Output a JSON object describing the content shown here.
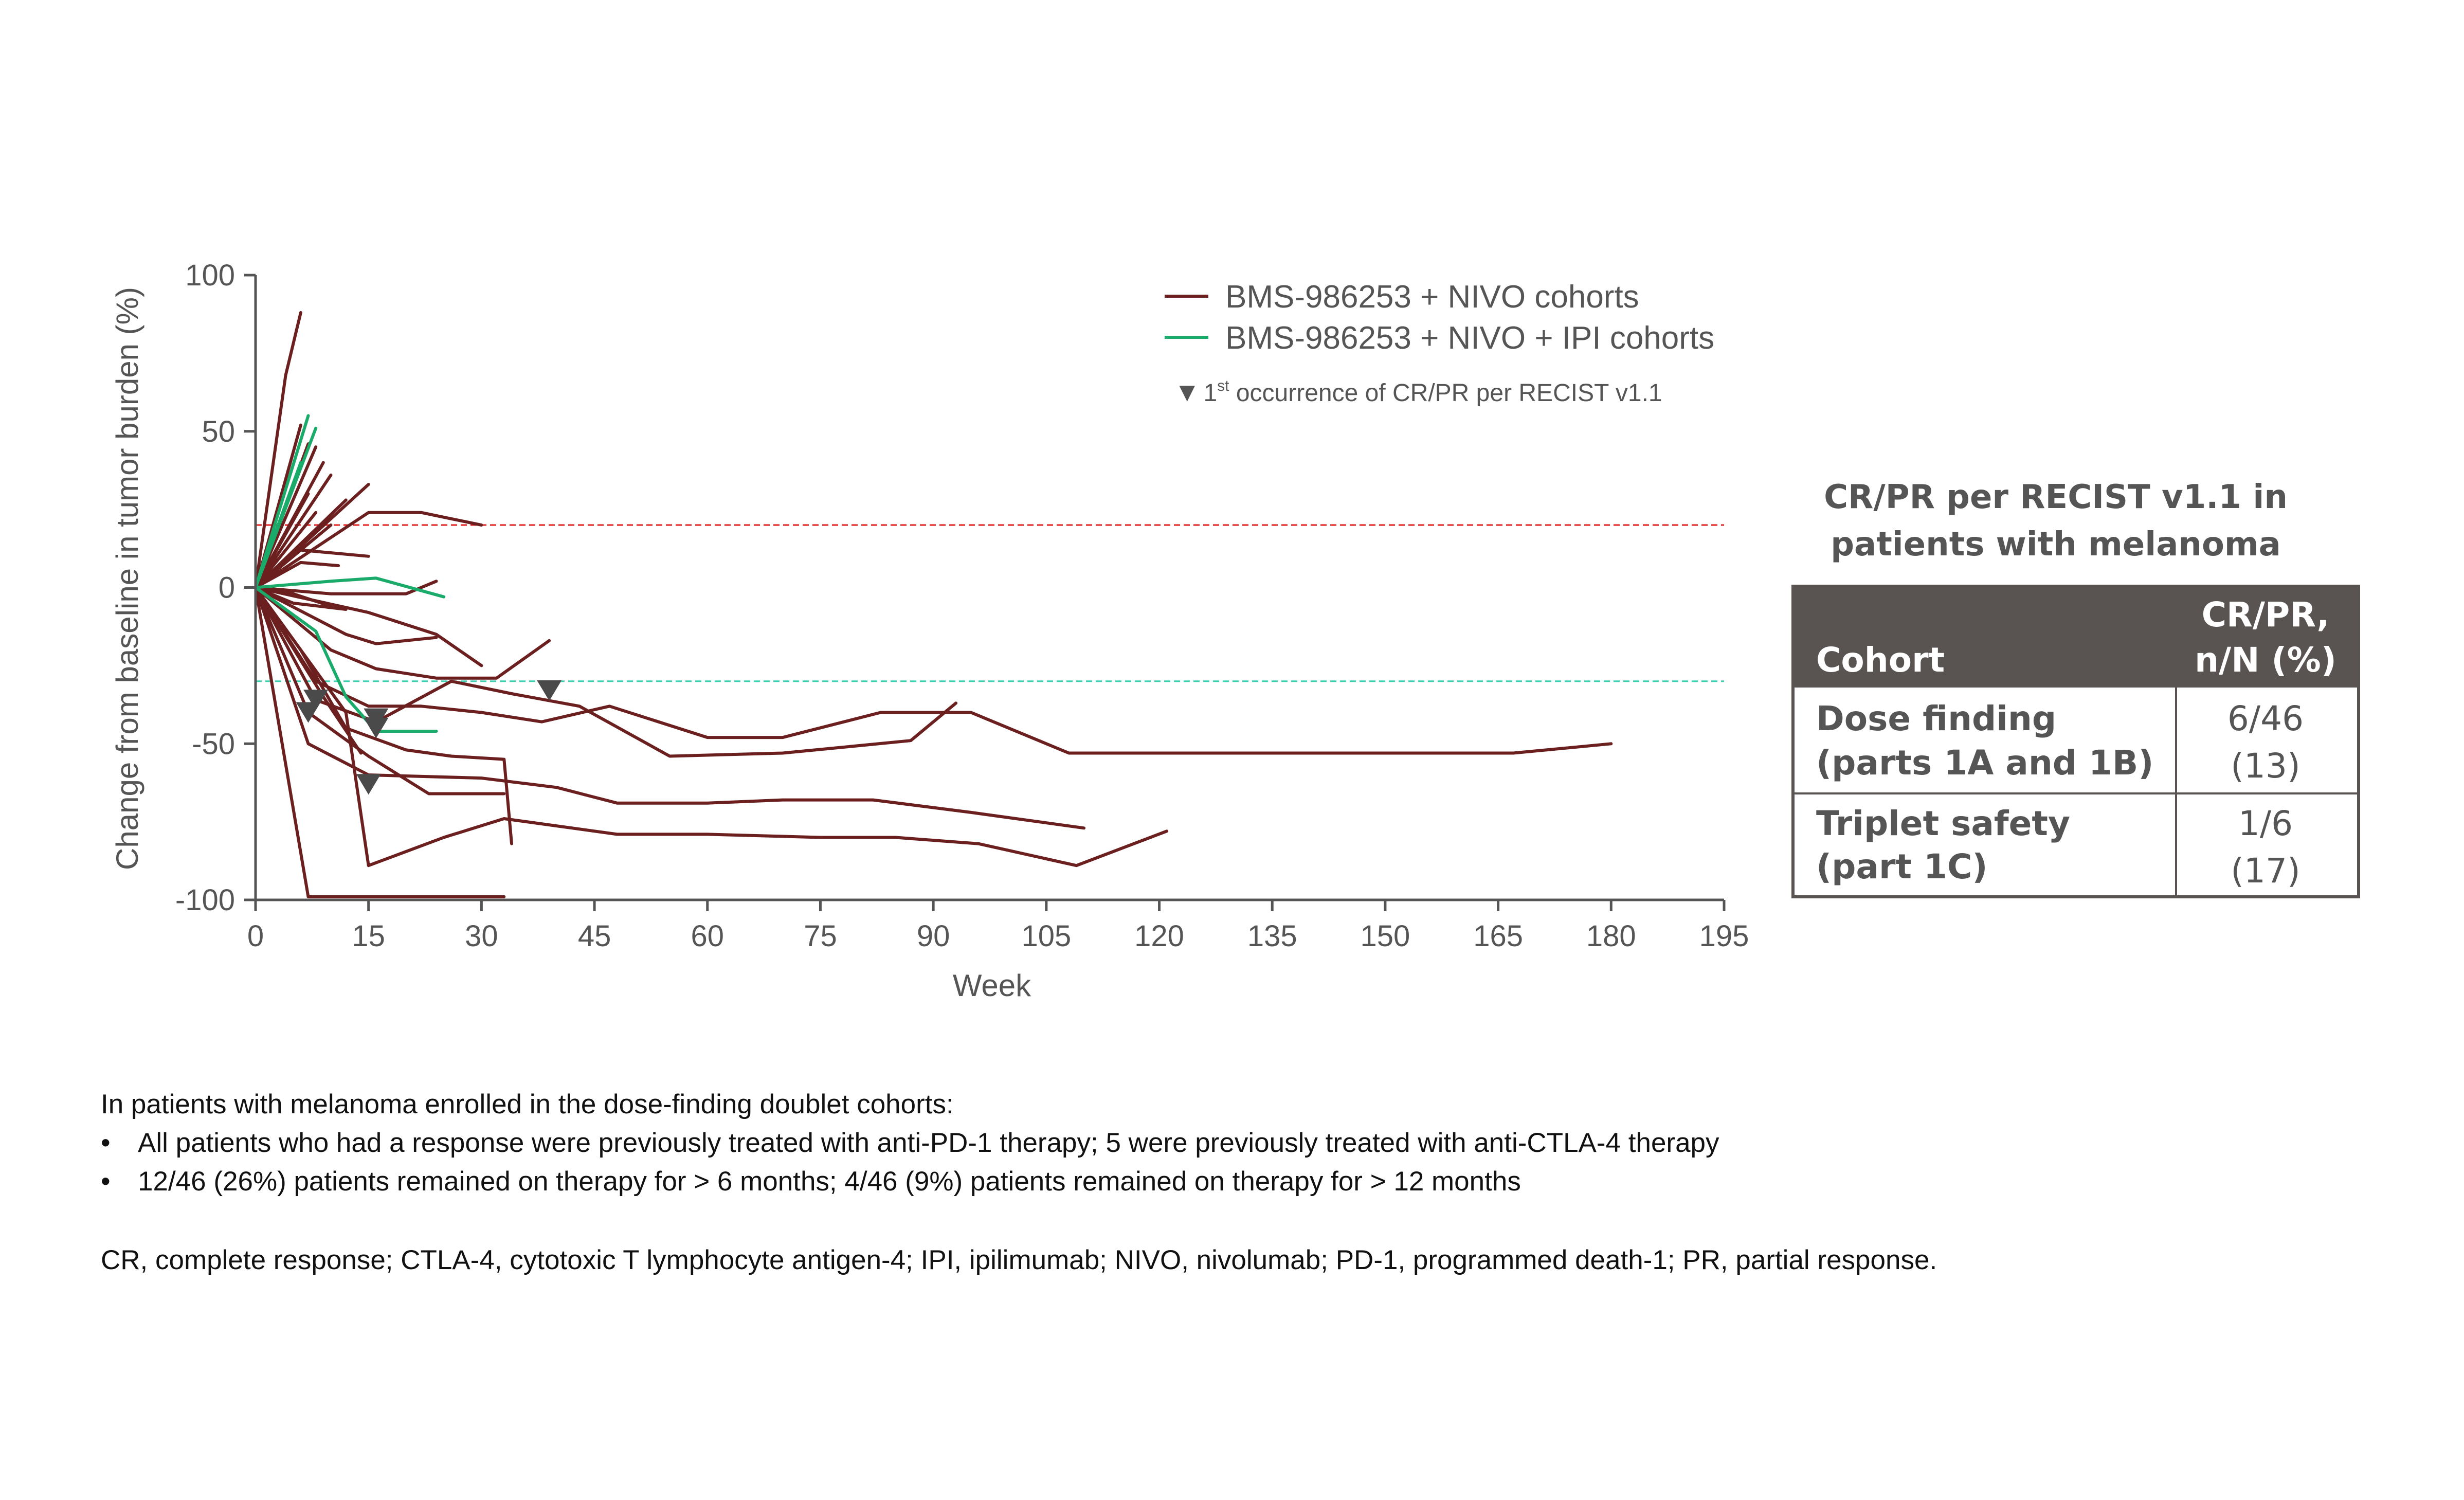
{
  "chart_data": {
    "type": "line",
    "xlabel": "Week",
    "ylabel": "Change from baseline in tumor burden (%)",
    "xlim": [
      0,
      195
    ],
    "ylim": [
      -100,
      100
    ],
    "xticks": [
      0,
      15,
      30,
      45,
      60,
      75,
      90,
      105,
      120,
      135,
      150,
      165,
      180,
      195
    ],
    "yticks": [
      100,
      50,
      0,
      -50,
      -100
    ],
    "ytick_labels": [
      "100",
      "50",
      "0",
      "-50",
      "-100"
    ],
    "reference_lines": [
      {
        "y": 20,
        "color": "#e02020",
        "style": "dashed"
      },
      {
        "y": -30,
        "color": "#3ccfb0",
        "style": "dashed"
      }
    ],
    "legend": {
      "position": "top-right",
      "items": [
        {
          "label": "BMS-986253 + NIVO cohorts",
          "color": "#6b1f1f"
        },
        {
          "label": "BMS-986253 + NIVO + IPI cohorts",
          "color": "#1aaa6a"
        }
      ],
      "marker_note": {
        "symbol": "▼",
        "prefix": "1",
        "superscript": "st",
        "text": " occurrence of CR/PR per RECIST v1.1"
      }
    },
    "series": [
      {
        "group": "NIVO",
        "points": [
          [
            0,
            0
          ],
          [
            4,
            68
          ],
          [
            6,
            88
          ]
        ]
      },
      {
        "group": "NIVO",
        "points": [
          [
            0,
            0
          ],
          [
            6,
            52
          ]
        ]
      },
      {
        "group": "NIVO",
        "points": [
          [
            0,
            0
          ],
          [
            7,
            46
          ]
        ]
      },
      {
        "group": "NIVO",
        "points": [
          [
            0,
            0
          ],
          [
            8,
            45
          ]
        ]
      },
      {
        "group": "NIVO",
        "points": [
          [
            0,
            0
          ],
          [
            9,
            40
          ]
        ]
      },
      {
        "group": "NIVO",
        "points": [
          [
            0,
            0
          ],
          [
            10,
            36
          ]
        ]
      },
      {
        "group": "NIVO",
        "points": [
          [
            0,
            0
          ],
          [
            7,
            30
          ]
        ]
      },
      {
        "group": "NIVO",
        "points": [
          [
            0,
            0
          ],
          [
            12,
            28
          ]
        ]
      },
      {
        "group": "NIVO",
        "points": [
          [
            0,
            0
          ],
          [
            8,
            24
          ]
        ]
      },
      {
        "group": "NIVO",
        "points": [
          [
            0,
            0
          ],
          [
            10,
            20
          ]
        ]
      },
      {
        "group": "NIVO",
        "points": [
          [
            0,
            0
          ],
          [
            15,
            33
          ]
        ]
      },
      {
        "group": "NIVO",
        "points": [
          [
            0,
            0
          ],
          [
            15,
            24
          ],
          [
            22,
            24
          ],
          [
            30,
            20
          ]
        ]
      },
      {
        "group": "NIVO",
        "points": [
          [
            0,
            0
          ],
          [
            6,
            12
          ],
          [
            15,
            10
          ]
        ]
      },
      {
        "group": "NIVO",
        "points": [
          [
            0,
            0
          ],
          [
            6,
            8
          ],
          [
            11,
            7
          ]
        ]
      },
      {
        "group": "NIVO",
        "points": [
          [
            0,
            0
          ],
          [
            5,
            -5
          ],
          [
            12,
            -7
          ]
        ]
      },
      {
        "group": "NIVO",
        "points": [
          [
            0,
            0
          ],
          [
            10,
            -2
          ],
          [
            20,
            -2
          ],
          [
            24,
            2
          ]
        ]
      },
      {
        "group": "NIVO",
        "points": [
          [
            0,
            0
          ],
          [
            15,
            -8
          ],
          [
            24,
            -15
          ],
          [
            30,
            -25
          ]
        ]
      },
      {
        "group": "NIVO",
        "points": [
          [
            0,
            0
          ],
          [
            12,
            -15
          ],
          [
            16,
            -18
          ],
          [
            24,
            -16
          ]
        ]
      },
      {
        "group": "NIVO",
        "points": [
          [
            0,
            0
          ],
          [
            10,
            -20
          ],
          [
            16,
            -26
          ],
          [
            24,
            -29
          ],
          [
            32,
            -29
          ],
          [
            39,
            -17
          ]
        ]
      },
      {
        "group": "NIVO",
        "points": [
          [
            0,
            0
          ],
          [
            8,
            -30
          ],
          [
            15,
            -38
          ],
          [
            22,
            -38
          ],
          [
            30,
            -40
          ],
          [
            38,
            -43
          ],
          [
            47,
            -38
          ],
          [
            60,
            -48
          ],
          [
            70,
            -48
          ],
          [
            83,
            -40
          ],
          [
            95,
            -40
          ],
          [
            108,
            -53
          ],
          [
            125,
            -53
          ],
          [
            140,
            -53
          ],
          [
            160,
            -53
          ],
          [
            167,
            -53
          ],
          [
            180,
            -50
          ]
        ]
      },
      {
        "group": "NIVO",
        "points": [
          [
            0,
            0
          ],
          [
            8,
            -36
          ],
          [
            16,
            -43
          ],
          [
            26,
            -30
          ],
          [
            34,
            -34
          ],
          [
            43,
            -38
          ],
          [
            55,
            -54
          ],
          [
            70,
            -53
          ],
          [
            87,
            -49
          ],
          [
            93,
            -37
          ]
        ]
      },
      {
        "group": "NIVO",
        "points": [
          [
            0,
            0
          ],
          [
            7,
            -50
          ],
          [
            15,
            -60
          ],
          [
            30,
            -61
          ],
          [
            40,
            -64
          ],
          [
            48,
            -69
          ],
          [
            60,
            -69
          ],
          [
            70,
            -68
          ],
          [
            82,
            -68
          ],
          [
            95,
            -72
          ],
          [
            110,
            -77
          ]
        ]
      },
      {
        "group": "NIVO",
        "points": [
          [
            0,
            0
          ],
          [
            7,
            -40
          ],
          [
            15,
            -54
          ],
          [
            23,
            -66
          ],
          [
            33,
            -66
          ]
        ]
      },
      {
        "group": "NIVO",
        "points": [
          [
            0,
            0
          ],
          [
            12,
            -40
          ],
          [
            15,
            -89
          ],
          [
            25,
            -80
          ],
          [
            33,
            -74
          ],
          [
            48,
            -79
          ],
          [
            60,
            -79
          ],
          [
            75,
            -80
          ],
          [
            85,
            -80
          ],
          [
            96,
            -82
          ],
          [
            109,
            -89
          ],
          [
            121,
            -78
          ]
        ]
      },
      {
        "group": "NIVO",
        "points": [
          [
            0,
            0
          ],
          [
            6,
            -20
          ],
          [
            12,
            -45
          ],
          [
            20,
            -52
          ],
          [
            26,
            -54
          ],
          [
            33,
            -55
          ],
          [
            34,
            -82
          ]
        ]
      },
      {
        "group": "NIVO",
        "points": [
          [
            0,
            0
          ],
          [
            7,
            -99
          ],
          [
            33,
            -99
          ]
        ]
      },
      {
        "group": "NIVO",
        "points": [
          [
            0,
            0
          ],
          [
            9,
            -35
          ],
          [
            14,
            -53
          ]
        ]
      },
      {
        "group": "NIVO",
        "points": [
          [
            0,
            0
          ],
          [
            5,
            -2
          ],
          [
            10,
            -6
          ]
        ]
      },
      {
        "group": "IPI",
        "points": [
          [
            0,
            0
          ],
          [
            7,
            55
          ]
        ]
      },
      {
        "group": "IPI",
        "points": [
          [
            0,
            0
          ],
          [
            8,
            51
          ]
        ]
      },
      {
        "group": "IPI",
        "points": [
          [
            0,
            0
          ],
          [
            6,
            40
          ]
        ]
      },
      {
        "group": "IPI",
        "points": [
          [
            0,
            0
          ],
          [
            10,
            2
          ],
          [
            16,
            3
          ],
          [
            25,
            -3
          ]
        ]
      },
      {
        "group": "IPI",
        "points": [
          [
            0,
            0
          ],
          [
            8,
            -14
          ],
          [
            12,
            -35
          ],
          [
            16,
            -46
          ],
          [
            24,
            -46
          ]
        ]
      }
    ],
    "response_markers": [
      {
        "x": 7,
        "y": -40
      },
      {
        "x": 8,
        "y": -36
      },
      {
        "x": 16,
        "y": -42
      },
      {
        "x": 16,
        "y": -45
      },
      {
        "x": 15,
        "y": -63
      },
      {
        "x": 39,
        "y": -33
      }
    ]
  },
  "table": {
    "title_line1": "CR/PR per RECIST v1.1 in",
    "title_line2": "patients with melanoma",
    "header_cohort": "Cohort",
    "header_value_line1": "CR/PR,",
    "header_value_line2": "n/N (%)",
    "header_bg": "#595451",
    "rows": [
      {
        "cohort_line1": "Dose finding",
        "cohort_line2": "(parts 1A and 1B)",
        "value_line1": "6/46",
        "value_line2": "(13)"
      },
      {
        "cohort_line1": "Triplet safety",
        "cohort_line2": "(part 1C)",
        "value_line1": "1/6",
        "value_line2": "(17)"
      }
    ]
  },
  "notes": {
    "intro": "In patients with melanoma enrolled in the dose-finding doublet cohorts:",
    "bullets": [
      "All patients who had a response were previously treated with anti-PD-1 therapy; 5 were previously treated with anti-CTLA-4 therapy",
      "12/46 (26%) patients remained on therapy for > 6 months; 4/46 (9%) patients remained on therapy for > 12 months"
    ],
    "abbreviations": "CR, complete response; CTLA-4, cytotoxic T lymphocyte antigen-4; IPI, ipilimumab; NIVO, nivolumab; PD-1, programmed death-1; PR, partial response."
  }
}
